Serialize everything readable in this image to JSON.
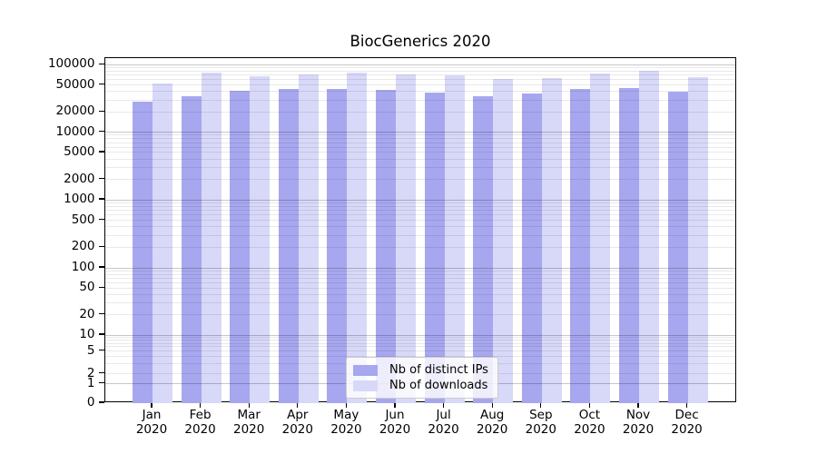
{
  "title": "BiocGenerics 2020",
  "chart_data": {
    "type": "bar",
    "title": "BiocGenerics 2020",
    "yscale": "symlog",
    "grid": true,
    "legend_position": "bottom-center",
    "categories": [
      "Jan",
      "Feb",
      "Mar",
      "Apr",
      "May",
      "Jun",
      "Jul",
      "Aug",
      "Sep",
      "Oct",
      "Nov",
      "Dec"
    ],
    "xlabel_year": "2020",
    "yticks": [
      100000,
      50000,
      20000,
      10000,
      5000,
      2000,
      1000,
      500,
      200,
      100,
      50,
      20,
      10,
      5,
      2,
      1,
      0
    ],
    "ylim": [
      0,
      126000
    ],
    "series": [
      {
        "name": "Nb of distinct IPs",
        "color": "#a7a7ef",
        "values": [
          28300,
          34100,
          41000,
          43700,
          44100,
          41900,
          38900,
          34100,
          37700,
          43300,
          45000,
          39400
        ]
      },
      {
        "name": "Nb of downloads",
        "color": "#d8d8f8",
        "values": [
          52600,
          77500,
          67400,
          71700,
          77100,
          72400,
          70200,
          60800,
          63400,
          74700,
          80500,
          65300
        ]
      }
    ]
  },
  "colors": {
    "grid_major": "#c8c8c8",
    "grid_minor": "#e8e8e8",
    "spine": "#000000",
    "background": "#ffffff"
  }
}
